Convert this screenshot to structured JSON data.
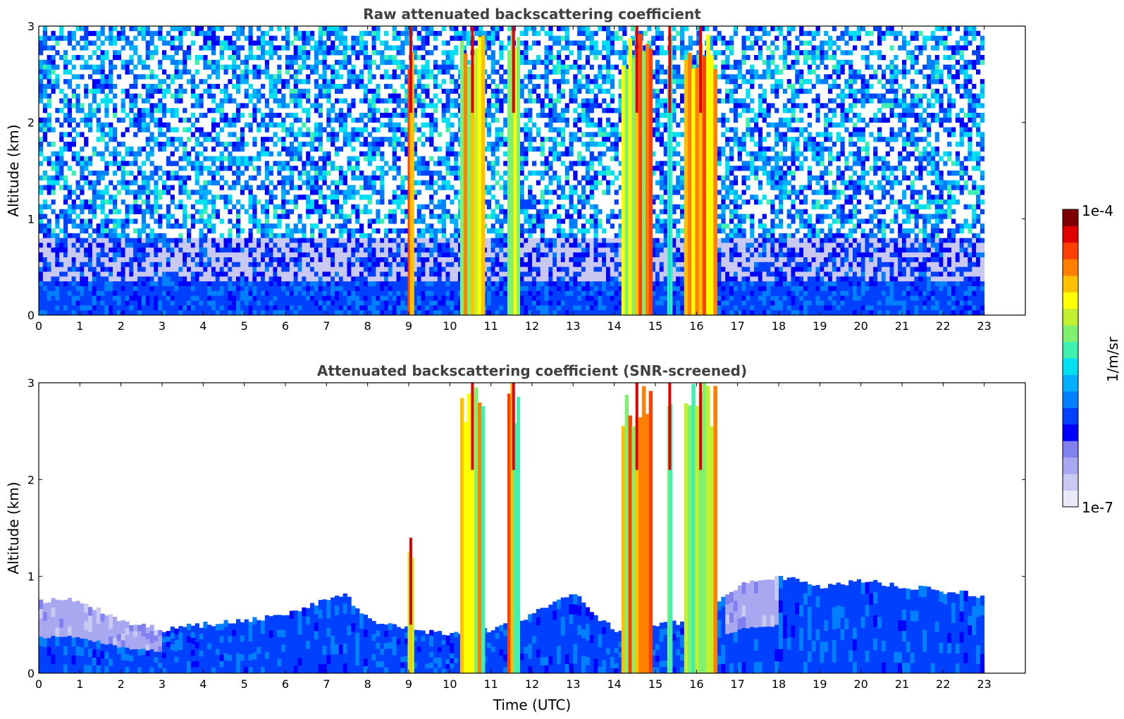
{
  "chart_data": [
    {
      "type": "heatmap",
      "title": "Raw attenuated backscattering coefficient",
      "xlabel": "",
      "ylabel": "Altitude (km)",
      "xlim": [
        0,
        24
      ],
      "ylim": [
        0,
        3
      ],
      "x_ticks": [
        "0",
        "1",
        "2",
        "3",
        "4",
        "5",
        "6",
        "7",
        "8",
        "9",
        "10",
        "11",
        "12",
        "13",
        "14",
        "15",
        "16",
        "17",
        "18",
        "19",
        "20",
        "21",
        "22",
        "23"
      ],
      "y_ticks": [
        "0",
        "1",
        "2",
        "3"
      ],
      "data_extent_hours": [
        0,
        23
      ],
      "background_noise": "speckled blue/cyan noise increasing with altitude, denser aerosol layer below ~0.5 km",
      "features": [
        {
          "name": "boundary-layer",
          "start": 0,
          "end": 23,
          "top_km": 0.35,
          "level": 0.3
        },
        {
          "name": "cloud-band",
          "center": 9.05,
          "width": 0.15,
          "top_km": 3,
          "level": 0.75
        },
        {
          "name": "cloud-band",
          "center": 10.55,
          "width": 0.6,
          "top_km": 3,
          "level": 0.7
        },
        {
          "name": "cloud-band",
          "center": 11.55,
          "width": 0.3,
          "top_km": 3,
          "level": 0.7
        },
        {
          "name": "cloud-band",
          "center": 14.55,
          "width": 0.75,
          "top_km": 3,
          "level": 0.72
        },
        {
          "name": "cloud-band",
          "center": 15.35,
          "width": 0.12,
          "top_km": 3,
          "level": 0.6
        },
        {
          "name": "cloud-band",
          "center": 16.1,
          "width": 0.8,
          "top_km": 3,
          "level": 0.72
        }
      ]
    },
    {
      "type": "heatmap",
      "title": "Attenuated backscattering coefficient (SNR-screened)",
      "xlabel": "Time (UTC)",
      "ylabel": "Altitude (km)",
      "xlim": [
        0,
        24
      ],
      "ylim": [
        0,
        3
      ],
      "x_ticks": [
        "0",
        "1",
        "2",
        "3",
        "4",
        "5",
        "6",
        "7",
        "8",
        "9",
        "10",
        "11",
        "12",
        "13",
        "14",
        "15",
        "16",
        "17",
        "18",
        "19",
        "20",
        "21",
        "22",
        "23"
      ],
      "y_ticks": [
        "0",
        "1",
        "2",
        "3"
      ],
      "data_extent_hours": [
        0,
        23
      ],
      "boundary_layer_top_km": [
        [
          0,
          0.75
        ],
        [
          1,
          0.75
        ],
        [
          2,
          0.55
        ],
        [
          3,
          0.45
        ],
        [
          4,
          0.5
        ],
        [
          5,
          0.55
        ],
        [
          6,
          0.6
        ],
        [
          7,
          0.75
        ],
        [
          7.5,
          0.8
        ],
        [
          8,
          0.55
        ],
        [
          9,
          0.45
        ],
        [
          10,
          0.4
        ],
        [
          11,
          0.45
        ],
        [
          12,
          0.6
        ],
        [
          13,
          0.85
        ],
        [
          13.5,
          0.6
        ],
        [
          14,
          0.45
        ],
        [
          15,
          0.5
        ],
        [
          16,
          0.55
        ],
        [
          17,
          0.9
        ],
        [
          18,
          1.0
        ],
        [
          19,
          0.9
        ],
        [
          20,
          0.95
        ],
        [
          21,
          0.9
        ],
        [
          22,
          0.85
        ],
        [
          23,
          0.8
        ]
      ],
      "features": [
        {
          "name": "cloud-band",
          "center": 9.05,
          "width": 0.15,
          "top_km": 1.4,
          "level": 0.75
        },
        {
          "name": "cloud-band",
          "center": 10.55,
          "width": 0.6,
          "top_km": 3,
          "level": 0.7
        },
        {
          "name": "cloud-band",
          "center": 11.55,
          "width": 0.3,
          "top_km": 3,
          "level": 0.7
        },
        {
          "name": "cloud-band",
          "center": 14.55,
          "width": 0.75,
          "top_km": 3,
          "level": 0.72
        },
        {
          "name": "cloud-band",
          "center": 15.35,
          "width": 0.12,
          "top_km": 3,
          "level": 0.6
        },
        {
          "name": "cloud-band",
          "center": 16.1,
          "width": 0.8,
          "top_km": 3,
          "level": 0.72
        }
      ]
    }
  ],
  "colorbar": {
    "label": "1/m/sr",
    "max_label": "1e-4",
    "min_label": "1e-7",
    "colors": [
      "#e8e8f8",
      "#c8c8f0",
      "#a8a8f0",
      "#8080f0",
      "#0000ff",
      "#0040ff",
      "#0080ff",
      "#00b0ff",
      "#00e0f0",
      "#40f0b0",
      "#80f070",
      "#c0f030",
      "#ffff00",
      "#ffc000",
      "#ff8000",
      "#ff4000",
      "#e00000",
      "#800000"
    ]
  }
}
